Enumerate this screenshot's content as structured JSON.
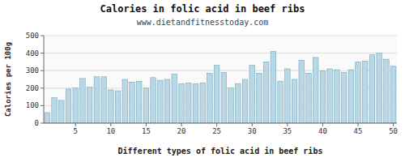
{
  "chart_data": {
    "type": "bar",
    "title": "Calories in folic acid in beef ribs",
    "subtitle": "www.dietandfitnesstoday.com",
    "xlabel": "Different types of folic acid in beef ribs",
    "ylabel": "Calories per 100g",
    "x": [
      1,
      2,
      3,
      4,
      5,
      6,
      7,
      8,
      9,
      10,
      11,
      12,
      13,
      14,
      15,
      16,
      17,
      18,
      19,
      20,
      21,
      22,
      23,
      24,
      25,
      26,
      27,
      28,
      29,
      30,
      31,
      32,
      33,
      34,
      35,
      36,
      37,
      38,
      39,
      40,
      41,
      42,
      43,
      44,
      45,
      46,
      47,
      48,
      49,
      50
    ],
    "values": [
      60,
      145,
      130,
      195,
      200,
      255,
      205,
      265,
      265,
      190,
      185,
      250,
      235,
      240,
      200,
      260,
      245,
      250,
      280,
      225,
      230,
      225,
      230,
      285,
      330,
      290,
      200,
      225,
      250,
      330,
      285,
      350,
      410,
      240,
      310,
      250,
      360,
      285,
      375,
      300,
      310,
      305,
      290,
      305,
      350,
      355,
      390,
      400,
      365,
      325
    ],
    "color": "#b8d8e8",
    "xlim": [
      0.5,
      50.5
    ],
    "xticks": [
      5,
      10,
      15,
      20,
      25,
      30,
      35,
      40,
      45,
      50
    ],
    "ylim": [
      0,
      500
    ],
    "yticks": [
      0,
      100,
      200,
      300,
      400,
      500
    ],
    "grid": true
  }
}
